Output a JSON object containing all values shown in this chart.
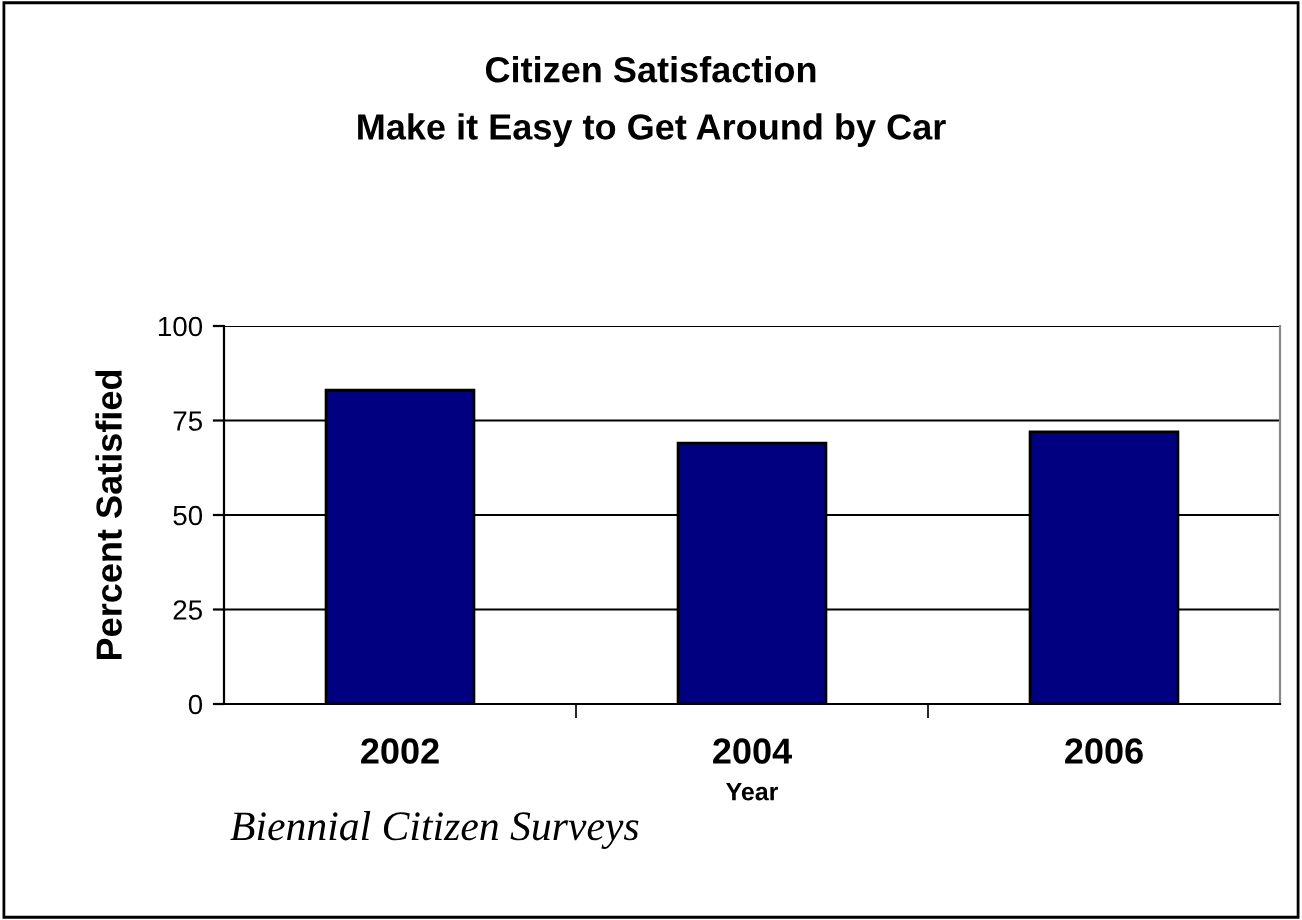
{
  "chart_data": {
    "type": "bar",
    "title": "Citizen Satisfaction\nMake it Easy to Get Around by Car",
    "categories": [
      "2002",
      "2004",
      "2006"
    ],
    "values": [
      83,
      69,
      72
    ],
    "color": "#000080",
    "ylabel": "Percent Satisfied",
    "xlabel": "Year",
    "ylim": [
      0,
      100
    ],
    "yticks": [
      0,
      25,
      50,
      75,
      100
    ],
    "grid": "y",
    "annotations": [
      "Biennial Citizen Surveys"
    ]
  }
}
